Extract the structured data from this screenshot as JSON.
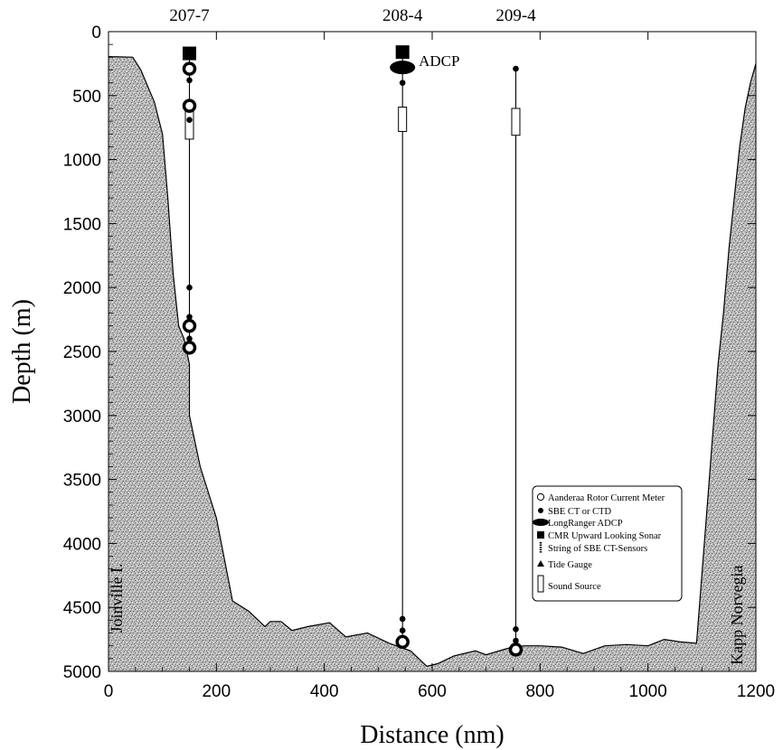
{
  "chart_data": {
    "type": "line",
    "xlabel": "Distance (nm)",
    "ylabel": "Depth (m)",
    "xlim": [
      0,
      1200
    ],
    "ylim": [
      0,
      5000
    ],
    "y_inverted": true,
    "x_ticks": [
      "0",
      "200",
      "400",
      "600",
      "800",
      "1000",
      "1200"
    ],
    "y_ticks": [
      "0",
      "500",
      "1000",
      "1500",
      "2000",
      "2500",
      "3000",
      "3500",
      "4000",
      "4500",
      "5000"
    ],
    "grid": false,
    "legend_position": "lower-right",
    "fill_color": "#b8b8b8",
    "bathymetry": {
      "x": [
        0,
        45,
        60,
        85,
        100,
        110,
        120,
        130,
        140,
        150,
        150,
        170,
        200,
        230,
        260,
        290,
        300,
        320,
        340,
        370,
        410,
        440,
        480,
        520,
        560,
        590,
        610,
        640,
        680,
        700,
        740,
        770,
        800,
        840,
        880,
        920,
        960,
        1000,
        1030,
        1060,
        1090,
        1110,
        1130,
        1140,
        1150,
        1160,
        1170,
        1180,
        1190,
        1200
      ],
      "y": [
        195,
        200,
        300,
        550,
        800,
        1300,
        1900,
        2300,
        2400,
        2600,
        3000,
        3400,
        3800,
        4450,
        4530,
        4650,
        4610,
        4610,
        4680,
        4650,
        4620,
        4730,
        4700,
        4780,
        4840,
        4960,
        4940,
        4880,
        4840,
        4870,
        4820,
        4800,
        4800,
        4810,
        4860,
        4800,
        4790,
        4800,
        4750,
        4770,
        4780,
        3700,
        2600,
        2200,
        1700,
        1300,
        900,
        600,
        400,
        250
      ]
    },
    "moorings": [
      {
        "name": "207-7",
        "x": 150,
        "top": 170,
        "bottom": 2470,
        "sonar": [
          170
        ],
        "current_meters": [
          290,
          580,
          2300,
          2470
        ],
        "ct_sensors": [
          380,
          690,
          2000,
          2230,
          2400
        ],
        "sound_source": [
          590,
          840
        ],
        "adcp": []
      },
      {
        "name": "208-4",
        "x": 545,
        "top": 160,
        "bottom": 4770,
        "sonar": [
          160
        ],
        "current_meters": [
          4770
        ],
        "ct_sensors": [
          400,
          4590,
          4680
        ],
        "sound_source": [
          590,
          780
        ],
        "adcp": [
          280
        ]
      },
      {
        "name": "209-4",
        "x": 755,
        "top": 290,
        "bottom": 4830,
        "sonar": [],
        "current_meters": [
          4830
        ],
        "ct_sensors": [
          290,
          4670,
          4760
        ],
        "sound_source": [
          600,
          810
        ],
        "adcp": []
      }
    ],
    "annotations": [
      {
        "text": "ADCP",
        "x": 575,
        "y": 270
      },
      {
        "text": "Joinville I.",
        "x": 25,
        "y": 4700,
        "rotation": -90
      },
      {
        "text": "Kapp Norvegia",
        "x": 1175,
        "y": 4950,
        "rotation": -90
      }
    ],
    "legend": [
      {
        "symbol": "current-meter",
        "label": "Aanderaa Rotor Current Meter"
      },
      {
        "symbol": "ct-sensor",
        "label": "SBE CT or CTD"
      },
      {
        "symbol": "adcp",
        "label": "LongRanger ADCP"
      },
      {
        "symbol": "sonar",
        "label": "CMR Upward Looking Sonar"
      },
      {
        "symbol": "ct-string",
        "label": "String of SBE CT-Sensors"
      },
      {
        "symbol": "tide-gauge",
        "label": "Tide Gauge"
      },
      {
        "symbol": "sound-source",
        "label": "Sound Source"
      }
    ]
  }
}
